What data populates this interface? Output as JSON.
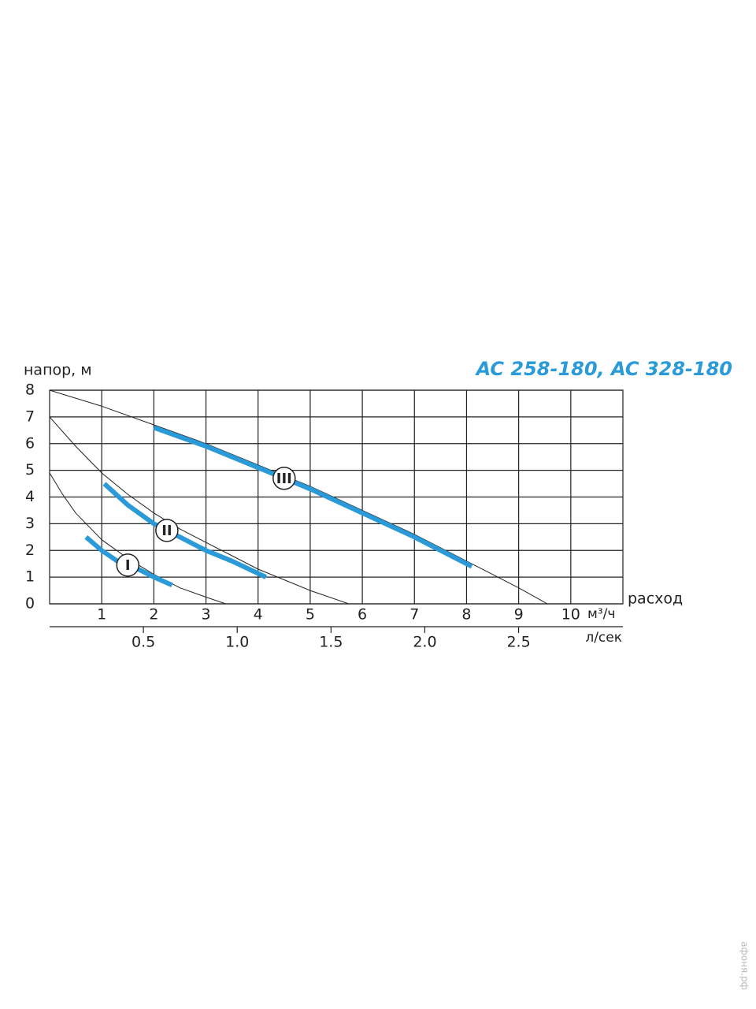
{
  "chart_data": {
    "type": "line",
    "title": "AC 258-180, AC 328-180",
    "ylabel": "напор, м",
    "xlabel": "расход",
    "xunit": "м³/ч",
    "x2label": "л/сек",
    "watermark": "афоня.рф",
    "xlim": [
      0,
      11
    ],
    "xticks": [
      1,
      2,
      3,
      4,
      5,
      6,
      7,
      8,
      9,
      10
    ],
    "x2lim": [
      0,
      3.056
    ],
    "x2ticks": [
      {
        "value": 0.5,
        "label": "0.5"
      },
      {
        "value": 1.0,
        "label": "1.0"
      },
      {
        "value": 1.5,
        "label": "1.5"
      },
      {
        "value": 2.0,
        "label": "2.0"
      },
      {
        "value": 2.5,
        "label": "2.5"
      }
    ],
    "ylim": [
      0,
      8
    ],
    "yticks": [
      0,
      1,
      2,
      3,
      4,
      5,
      6,
      7,
      8
    ],
    "grid": true,
    "series": [
      {
        "color": "#222222",
        "x": [
          0,
          1,
          2,
          3,
          4,
          5,
          6,
          7,
          8,
          9,
          9.55
        ],
        "values": [
          8,
          7.4,
          6.7,
          6.0,
          5.2,
          4.4,
          3.5,
          2.6,
          1.6,
          0.6,
          0
        ]
      },
      {
        "color": "#222222",
        "x": [
          0,
          0.5,
          1,
          1.5,
          2,
          2.5,
          3,
          3.5,
          4,
          4.5,
          5,
          5.74
        ],
        "values": [
          7,
          5.9,
          4.9,
          4.1,
          3.4,
          2.8,
          2.3,
          1.8,
          1.3,
          0.9,
          0.5,
          0
        ]
      },
      {
        "color": "#222222",
        "x": [
          0,
          0.25,
          0.5,
          1,
          1.5,
          2,
          2.5,
          3,
          3.38
        ],
        "values": [
          4.9,
          4.1,
          3.4,
          2.4,
          1.7,
          1.1,
          0.6,
          0.25,
          0
        ]
      },
      {
        "name": "III",
        "color": "#2a9ad8",
        "x": [
          2.0,
          3.0,
          4.0,
          5.0,
          6.0,
          7.0,
          8.1
        ],
        "values": [
          6.6,
          5.9,
          5.1,
          4.3,
          3.4,
          2.5,
          1.4
        ]
      },
      {
        "name": "II",
        "color": "#2a9ad8",
        "x": [
          1.05,
          1.5,
          2.0,
          2.5,
          3.0,
          3.5,
          4.15
        ],
        "values": [
          4.5,
          3.7,
          3.0,
          2.5,
          2.0,
          1.6,
          1.0
        ]
      },
      {
        "name": "I",
        "color": "#2a9ad8",
        "x": [
          0.7,
          1.0,
          1.3,
          1.7,
          2.0,
          2.35
        ],
        "values": [
          2.5,
          2.0,
          1.6,
          1.3,
          1.0,
          0.7
        ]
      }
    ]
  }
}
